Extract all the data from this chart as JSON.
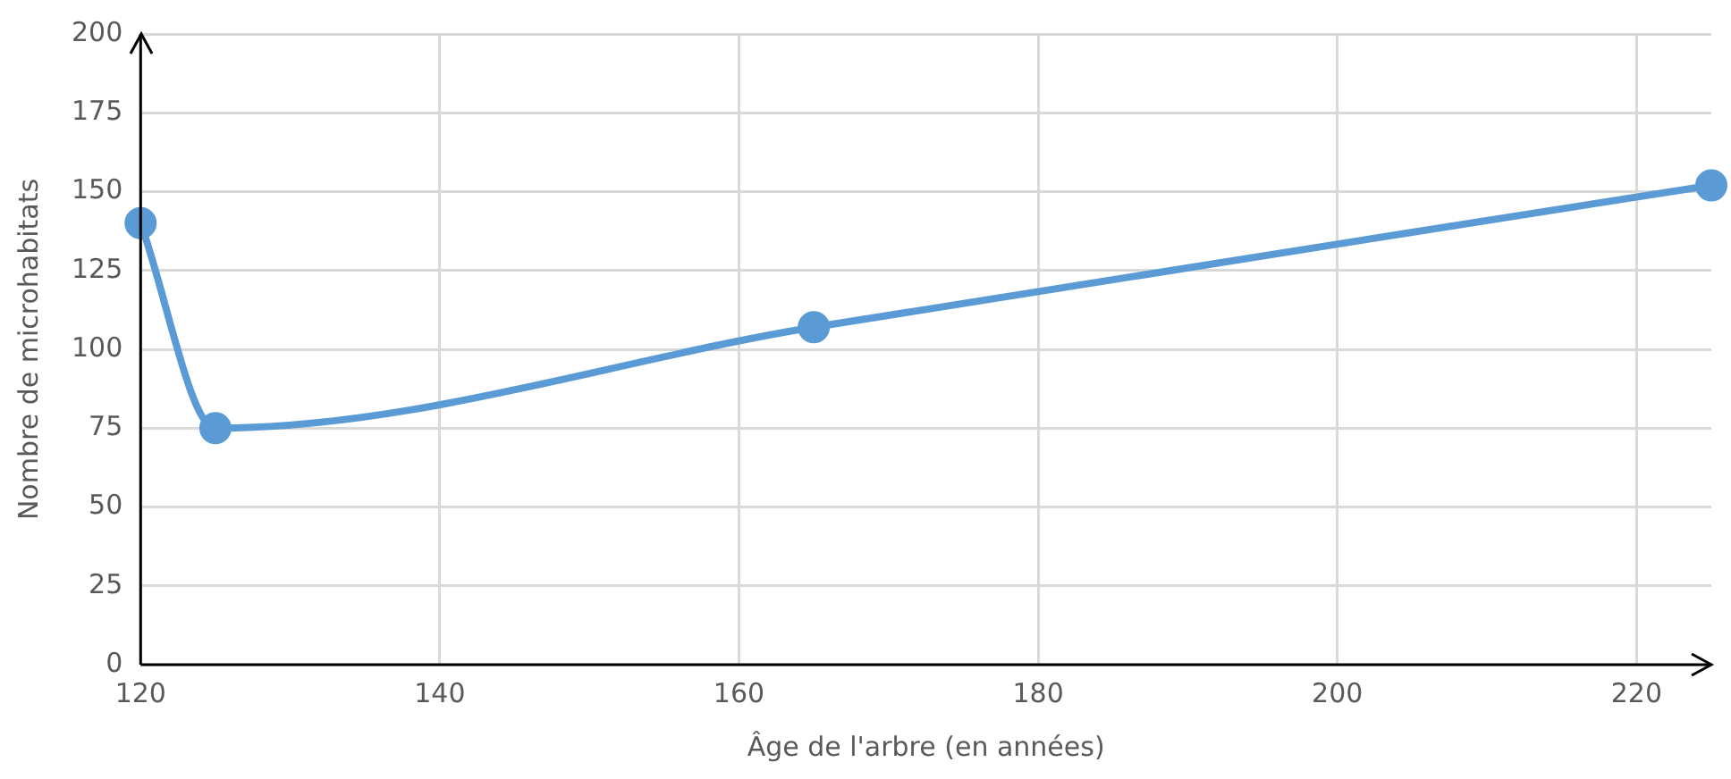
{
  "chart_data": {
    "type": "line",
    "xlabel": "Âge de l'arbre (en années)",
    "ylabel": "Nombre de microhabitats",
    "x": [
      120,
      125,
      165,
      225
    ],
    "series": [
      {
        "color": "#5b9bd5",
        "values": [
          140,
          75,
          107,
          152
        ]
      }
    ],
    "xlim": [
      120,
      225
    ],
    "xticks": [
      120,
      140,
      160,
      180,
      200,
      220
    ],
    "ylim": [
      0,
      200
    ],
    "yticks": [
      0,
      25,
      50,
      75,
      100,
      125,
      150,
      175,
      200
    ],
    "grid": true,
    "legend": false,
    "marker": "circle",
    "line_style": "solid"
  }
}
